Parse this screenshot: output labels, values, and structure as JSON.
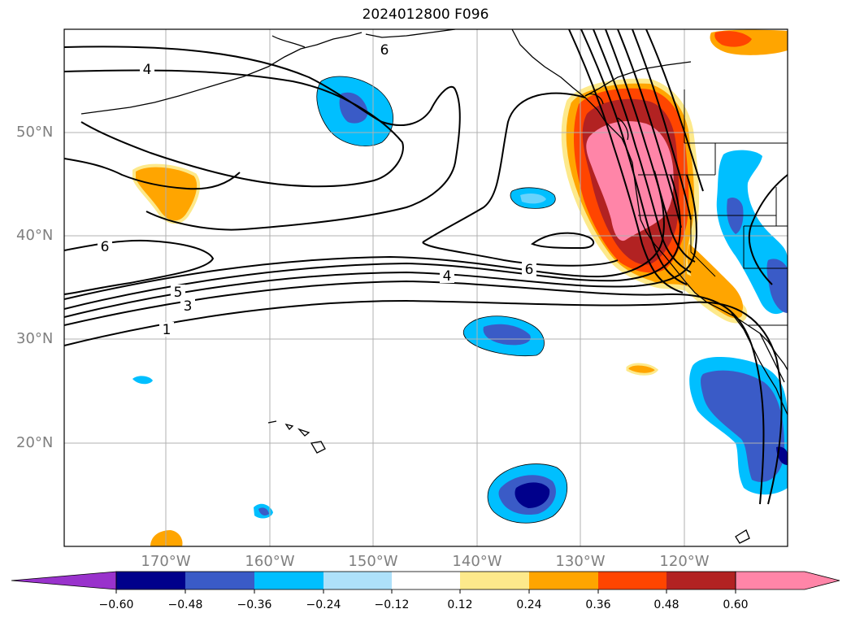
{
  "title": "2024012800 F096",
  "map": {
    "lat_labels": [
      "50°N",
      "40°N",
      "30°N",
      "20°N"
    ],
    "lon_labels": [
      "170°W",
      "160°W",
      "150°W",
      "140°W",
      "130°W",
      "120°W"
    ],
    "contour_labels": [
      "4",
      "6",
      "6",
      "5",
      "3",
      "1",
      "4",
      "6"
    ]
  },
  "colorbar": {
    "ticks": [
      "−0.60",
      "−0.48",
      "−0.36",
      "−0.24",
      "−0.12",
      "0.12",
      "0.24",
      "0.36",
      "0.48",
      "0.60"
    ],
    "colors": [
      "#9932cc",
      "#00008b",
      "#3a5bc7",
      "#00bfff",
      "#aee1fa",
      "#ffffff",
      "#fde98b",
      "#ffa500",
      "#ff4500",
      "#b22222",
      "#ff85a8",
      "#ff85a8"
    ],
    "neg_colors": {
      "dark_navy": "#00008b",
      "royal": "#3a5bc7",
      "deep_sky": "#00bfff",
      "light": "#aee1fa"
    },
    "pos_colors": {
      "yellow": "#fde98b",
      "orange": "#ffa500",
      "red_orange": "#ff4500",
      "firebrick": "#b22222",
      "pink": "#ff85a8"
    }
  }
}
